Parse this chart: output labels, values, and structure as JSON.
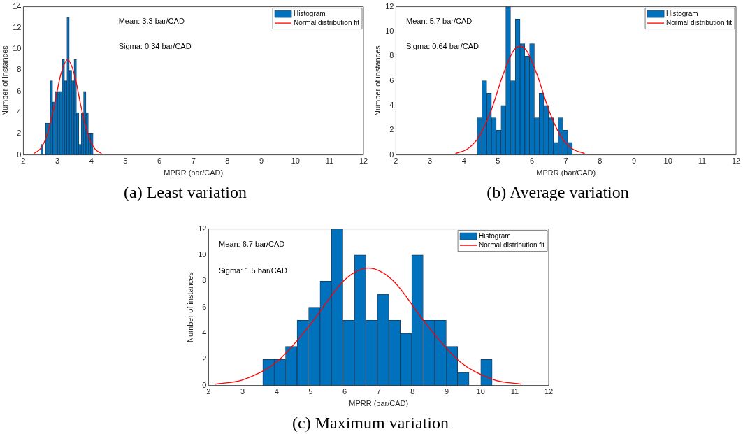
{
  "chart_data": [
    {
      "type": "histogram",
      "title": "(a) Least variation",
      "xlabel": "MPRR (bar/CAD)",
      "ylabel": "Number of instances",
      "annotations": [
        "Mean: 3.3 bar/CAD",
        "Sigma: 0.34 bar/CAD"
      ],
      "xlim": [
        2,
        12
      ],
      "xticks": [
        2,
        3,
        4,
        5,
        6,
        7,
        8,
        9,
        10,
        11,
        12
      ],
      "ylim": [
        0,
        14
      ],
      "yticks": [
        0,
        2,
        4,
        6,
        8,
        10,
        12,
        14
      ],
      "legend": "top right",
      "series": [
        {
          "name": "Histogram",
          "color": "#0072bd",
          "bins": [
            2.51,
            2.58,
            2.65,
            2.72,
            2.79,
            2.86,
            2.93,
            3.0,
            3.07,
            3.14,
            3.21,
            3.28,
            3.35,
            3.42,
            3.49,
            3.56,
            3.63,
            3.7,
            3.77,
            3.84,
            3.91,
            3.98,
            4.05
          ],
          "values": [
            1,
            0,
            3,
            3,
            7,
            5,
            6,
            6,
            6,
            9,
            7,
            13,
            8,
            7,
            9,
            4,
            1,
            4,
            6,
            4,
            2,
            2
          ]
        },
        {
          "name": "Normal distribution fit",
          "type": "line",
          "color": "#ff0000",
          "x": [
            2.3,
            2.5,
            2.7,
            2.9,
            3.1,
            3.3,
            3.5,
            3.7,
            3.9,
            4.1,
            4.3
          ],
          "values": [
            0.12,
            0.57,
            1.9,
            4.5,
            7.6,
            9,
            7.6,
            4.5,
            1.9,
            0.57,
            0.12
          ]
        }
      ]
    },
    {
      "type": "histogram",
      "title": "(b) Average variation",
      "xlabel": "MPRR (bar/CAD)",
      "ylabel": "Number of instances",
      "annotations": [
        "Mean: 5.7 bar/CAD",
        "Sigma: 0.64 bar/CAD"
      ],
      "xlim": [
        2,
        12
      ],
      "xticks": [
        2,
        3,
        4,
        5,
        6,
        7,
        8,
        9,
        10,
        11,
        12
      ],
      "ylim": [
        0,
        12
      ],
      "yticks": [
        0,
        2,
        4,
        6,
        8,
        10,
        12
      ],
      "legend": "top right",
      "series": [
        {
          "name": "Histogram",
          "color": "#0072bd",
          "bins": [
            4.39,
            4.53,
            4.67,
            4.81,
            4.95,
            5.09,
            5.23,
            5.37,
            5.51,
            5.65,
            5.79,
            5.93,
            6.07,
            6.21,
            6.35,
            6.49,
            6.63,
            6.77,
            6.91,
            7.05,
            7.19
          ],
          "values": [
            3,
            6,
            5,
            3,
            2,
            4,
            12,
            6,
            11,
            9,
            8,
            9,
            3,
            5,
            4,
            3,
            1,
            3,
            2,
            1
          ]
        },
        {
          "name": "Normal distribution fit",
          "type": "line",
          "color": "#ff0000",
          "x": [
            3.75,
            4.1,
            4.45,
            4.8,
            5.15,
            5.45,
            5.65,
            5.85,
            6.15,
            6.5,
            6.85,
            7.2,
            7.55
          ],
          "values": [
            0.11,
            0.47,
            1.5,
            3.6,
            6.5,
            8.4,
            8.8,
            8.4,
            6.5,
            3.6,
            1.5,
            0.47,
            0.11
          ]
        }
      ]
    },
    {
      "type": "histogram",
      "title": "(c) Maximum variation",
      "xlabel": "MPRR (bar/CAD)",
      "ylabel": "Number of instances",
      "annotations": [
        "Mean: 6.7 bar/CAD",
        "Sigma: 1.5 bar/CAD"
      ],
      "xlim": [
        2,
        12
      ],
      "xticks": [
        2,
        3,
        4,
        5,
        6,
        7,
        8,
        9,
        10,
        11,
        12
      ],
      "ylim": [
        0,
        12
      ],
      "yticks": [
        0,
        2,
        4,
        6,
        8,
        10,
        12
      ],
      "legend": "top right",
      "series": [
        {
          "name": "Histogram",
          "color": "#0072bd",
          "bins": [
            3.59,
            3.93,
            4.26,
            4.6,
            4.94,
            5.28,
            5.61,
            5.95,
            6.29,
            6.62,
            6.96,
            7.3,
            7.64,
            7.97,
            8.31,
            8.65,
            8.99,
            9.32,
            9.66,
            10.0,
            10.34
          ],
          "values": [
            2,
            2,
            3,
            5,
            6,
            8,
            12,
            5,
            10,
            5,
            7,
            5,
            4,
            10,
            5,
            5,
            3,
            1,
            0,
            2
          ]
        },
        {
          "name": "Normal distribution fit",
          "type": "line",
          "color": "#ff0000",
          "x": [
            2.2,
            3,
            4,
            5,
            6,
            6.7,
            7.4,
            8.4,
            9.4,
            10.4,
            11.2
          ],
          "values": [
            0.1,
            0.43,
            1.8,
            4.7,
            8.1,
            9,
            8.1,
            4.7,
            1.8,
            0.43,
            0.1
          ]
        }
      ]
    }
  ]
}
